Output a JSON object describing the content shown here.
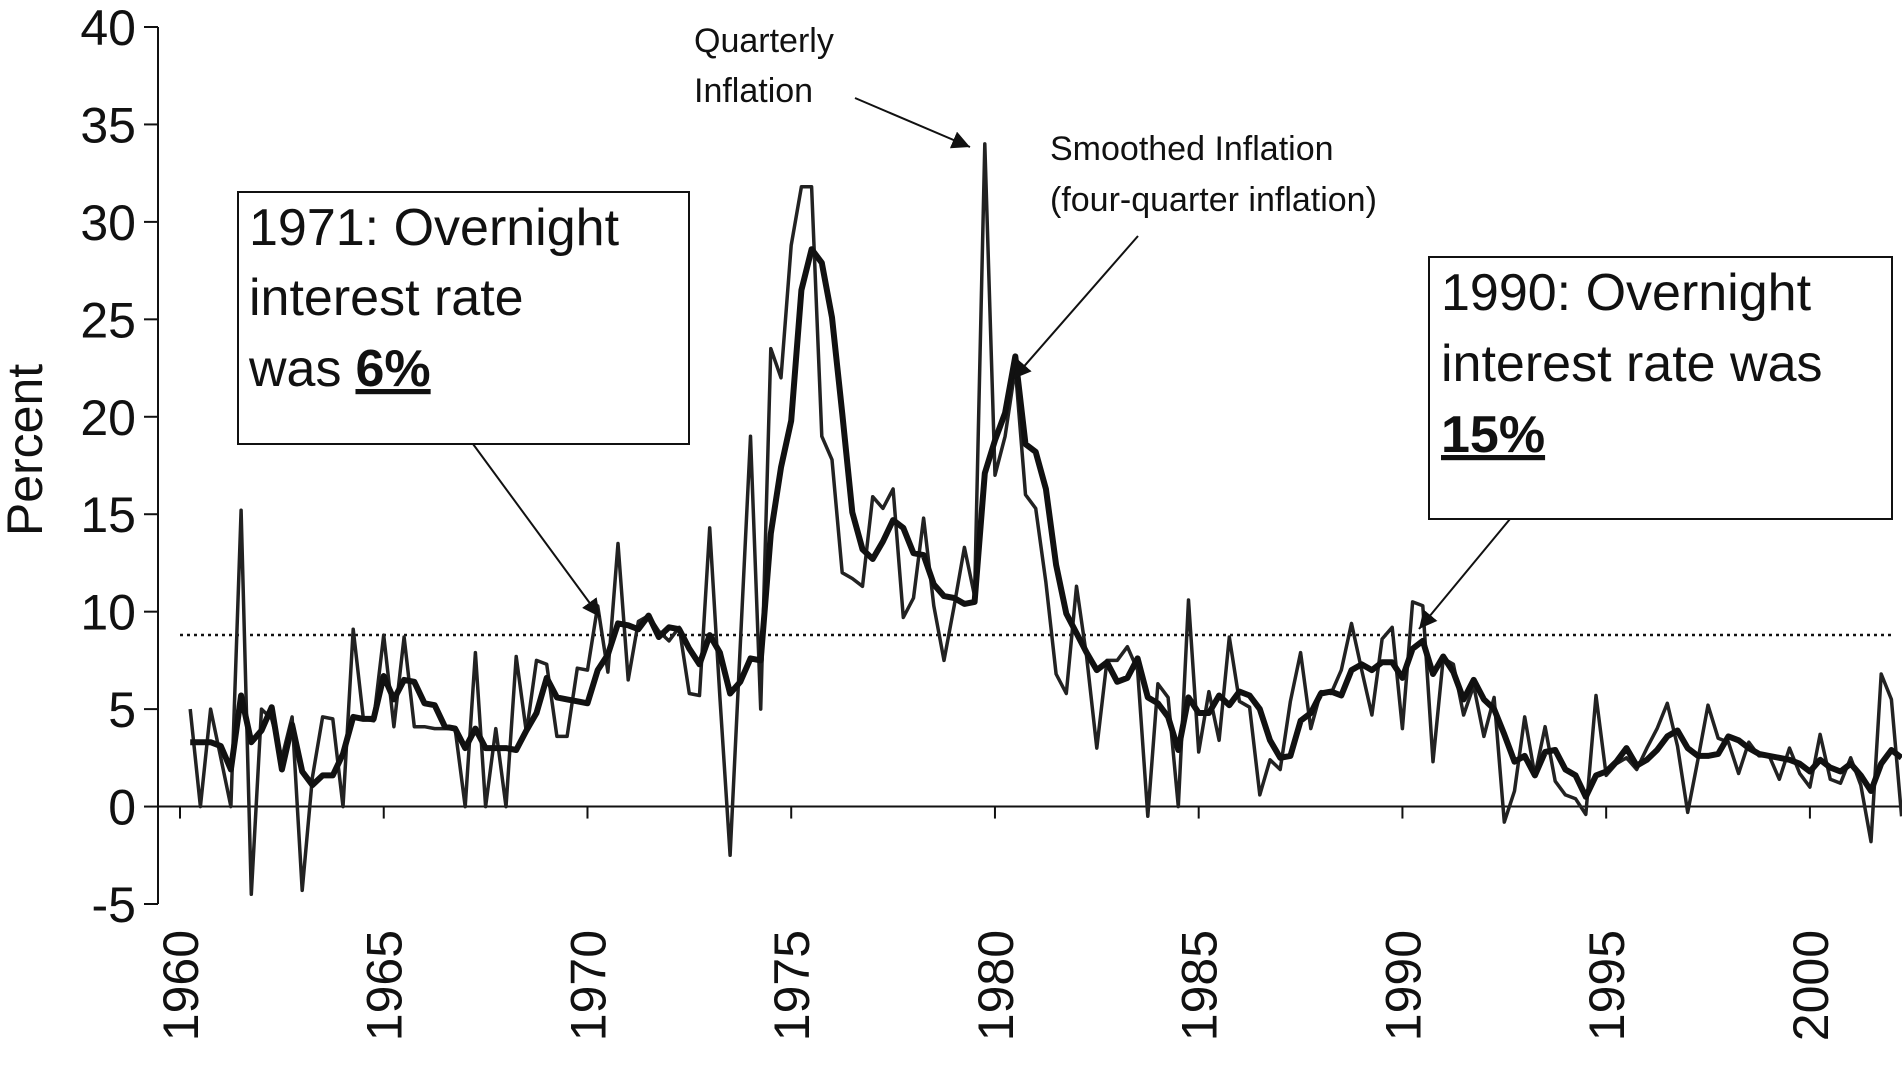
{
  "chart_data": {
    "type": "line",
    "y_label": "Percent",
    "xlim": [
      1959.46,
      2002.26
    ],
    "xticks": [
      1960,
      1965,
      1970,
      1975,
      1980,
      1985,
      1990,
      1995,
      2000
    ],
    "ylim": [
      -5,
      40
    ],
    "yticks": [
      -5,
      0,
      5,
      10,
      15,
      20,
      25,
      30,
      35,
      40
    ],
    "reference_line": 8.8,
    "x": [
      1960.25,
      1960.5,
      1960.75,
      1961,
      1961.25,
      1961.5,
      1961.75,
      1962,
      1962.25,
      1962.5,
      1962.75,
      1963,
      1963.25,
      1963.5,
      1963.75,
      1964,
      1964.25,
      1964.5,
      1964.75,
      1965,
      1965.25,
      1965.5,
      1965.75,
      1966,
      1966.25,
      1966.5,
      1966.75,
      1967,
      1967.25,
      1967.5,
      1967.75,
      1968,
      1968.25,
      1968.5,
      1968.75,
      1969,
      1969.25,
      1969.5,
      1969.75,
      1970,
      1970.25,
      1970.5,
      1970.75,
      1971,
      1971.25,
      1971.5,
      1971.75,
      1972,
      1972.25,
      1972.5,
      1972.75,
      1973,
      1973.25,
      1973.5,
      1973.75,
      1974,
      1974.25,
      1974.5,
      1974.75,
      1975,
      1975.25,
      1975.5,
      1975.75,
      1976,
      1976.25,
      1976.5,
      1976.75,
      1977,
      1977.25,
      1977.5,
      1977.75,
      1978,
      1978.25,
      1978.5,
      1978.75,
      1979,
      1979.25,
      1979.5,
      1979.75,
      1980,
      1980.25,
      1980.5,
      1980.75,
      1981,
      1981.25,
      1981.5,
      1981.75,
      1982,
      1982.25,
      1982.5,
      1982.75,
      1983,
      1983.25,
      1983.5,
      1983.75,
      1984,
      1984.25,
      1984.5,
      1984.75,
      1985,
      1985.25,
      1985.5,
      1985.75,
      1986,
      1986.25,
      1986.5,
      1986.75,
      1987,
      1987.25,
      1987.5,
      1987.75,
      1988,
      1988.25,
      1988.5,
      1988.75,
      1989,
      1989.25,
      1989.5,
      1989.75,
      1990,
      1990.25,
      1990.5,
      1990.75,
      1991,
      1991.25,
      1991.5,
      1991.75,
      1992,
      1992.25,
      1992.5,
      1992.75,
      1993,
      1993.25,
      1993.5,
      1993.75,
      1994,
      1994.25,
      1994.5,
      1994.75,
      1995,
      1995.25,
      1995.5,
      1995.75,
      1996,
      1996.25,
      1996.5,
      1996.75,
      1997,
      1997.25,
      1997.5,
      1997.75,
      1998,
      1998.25,
      1998.5,
      1998.75,
      1999,
      1999.25,
      1999.5,
      1999.75,
      2000,
      2000.25,
      2000.5,
      2000.75,
      2001,
      2001.25,
      2001.5,
      2001.75,
      2002,
      2002.25
    ],
    "series": [
      {
        "color": "#222222",
        "line_width": 3.5,
        "values": [
          5,
          0,
          5,
          2.5,
          0,
          15.2,
          -4.5,
          5,
          4.5,
          2.5,
          4.6,
          -4.3,
          1.5,
          4.6,
          4.5,
          0,
          9.1,
          4.5,
          4.4,
          8.8,
          4.1,
          8.7,
          4.1,
          4.1,
          4,
          4,
          4,
          0,
          7.9,
          0,
          4,
          0,
          7.7,
          3.8,
          7.5,
          7.3,
          3.6,
          3.6,
          7.1,
          7,
          10.3,
          6.9,
          13.5,
          6.5,
          9.5,
          9.8,
          9,
          8.5,
          9.2,
          5.8,
          5.7,
          14.3,
          5.6,
          -2.5,
          8.3,
          19,
          5,
          23.5,
          22,
          28.8,
          31.8,
          31.8,
          19,
          17.8,
          12,
          11.7,
          11.3,
          15.9,
          15.3,
          16.3,
          9.7,
          10.7,
          14.8,
          10.3,
          7.5,
          10.3,
          13.3,
          10.8,
          34,
          17,
          19,
          22.5,
          16,
          15.3,
          11.5,
          6.8,
          5.8,
          11.3,
          7.7,
          3,
          7.5,
          7.5,
          8.2,
          7,
          -0.5,
          6.3,
          5.6,
          0,
          10.6,
          2.8,
          5.9,
          3.4,
          8.7,
          5.4,
          5.1,
          0.6,
          2.4,
          1.9,
          5.4,
          7.9,
          4,
          5.9,
          5.8,
          7,
          9.4,
          7,
          4.7,
          8.6,
          9.2,
          4,
          10.5,
          10.3,
          2.3,
          7.6,
          7.3,
          4.7,
          6.2,
          3.6,
          5.6,
          -0.8,
          0.8,
          4.6,
          1.6,
          4.1,
          1.3,
          0.6,
          0.4,
          -0.4,
          5.7,
          1.6,
          2.2,
          2.5,
          1.9,
          3,
          4,
          5.3,
          3.1,
          -0.3,
          2.4,
          5.2,
          3.5,
          3.3,
          1.7,
          3.3,
          2.6,
          2.6,
          1.4,
          3,
          1.7,
          1,
          3.7,
          1.4,
          1.2,
          2.5,
          1.1,
          -1.8,
          6.8,
          5.5,
          -0.5
        ]
      },
      {
        "color": "#111111",
        "line_width": 6,
        "values": [
          3.3,
          3.3,
          3.3,
          3.1,
          1.9,
          5.7,
          3.3,
          3.9,
          5.1,
          1.9,
          4.2,
          1.8,
          1.1,
          1.6,
          1.6,
          2.7,
          4.6,
          4.5,
          4.5,
          6.7,
          5.5,
          6.5,
          6.4,
          5.3,
          5.2,
          4.1,
          4,
          3,
          4,
          3,
          3,
          3,
          2.9,
          3.9,
          4.8,
          6.6,
          5.6,
          5.5,
          5.4,
          5.3,
          7,
          7.8,
          9.4,
          9.3,
          9.1,
          9.8,
          8.7,
          9.2,
          9.1,
          8.1,
          7.3,
          8.8,
          7.9,
          5.8,
          6.4,
          7.6,
          7.5,
          14,
          17.4,
          19.8,
          26.5,
          28.6,
          27.9,
          25.1,
          20.2,
          15.1,
          13.2,
          12.7,
          13.6,
          14.7,
          14.3,
          13,
          12.9,
          11.4,
          10.8,
          10.7,
          10.4,
          10.5,
          17.1,
          18.8,
          20.2,
          23.1,
          18.6,
          18.2,
          16.3,
          12.4,
          9.9,
          8.9,
          7.9,
          7,
          7.4,
          6.4,
          6.6,
          7.6,
          5.6,
          5.3,
          4.6,
          2.9,
          5.6,
          4.8,
          4.8,
          5.7,
          5.2,
          5.9,
          5.7,
          5,
          3.4,
          2.5,
          2.6,
          4.4,
          4.8,
          5.8,
          5.9,
          5.7,
          7,
          7.3,
          7,
          7.4,
          7.4,
          6.6,
          8.1,
          8.5,
          6.8,
          7.7,
          6.9,
          5.5,
          6.5,
          5.5,
          5,
          3.7,
          2.3,
          2.6,
          1.6,
          2.8,
          2.9,
          1.9,
          1.6,
          0.5,
          1.6,
          1.8,
          2.3,
          3,
          2.1,
          2.4,
          2.9,
          3.6,
          3.9,
          3,
          2.6,
          2.6,
          2.7,
          3.6,
          3.4,
          3,
          2.7,
          2.6,
          2.5,
          2.4,
          2.2,
          1.8,
          2.4,
          2,
          1.8,
          2.2,
          1.6,
          0.8,
          2.2,
          2.9,
          2.5
        ]
      }
    ],
    "annotations": [
      {
        "lines": [
          "Quarterly",
          "Inflation"
        ]
      },
      {
        "lines": [
          "Smoothed Inflation",
          "(four-quarter inflation)"
        ]
      },
      {
        "lines": [
          "1971: Overnight",
          "interest rate",
          "was"
        ],
        "emphasis": "6%"
      },
      {
        "lines": [
          "1990: Overnight",
          "interest rate was"
        ],
        "emphasis": "15%"
      }
    ]
  }
}
